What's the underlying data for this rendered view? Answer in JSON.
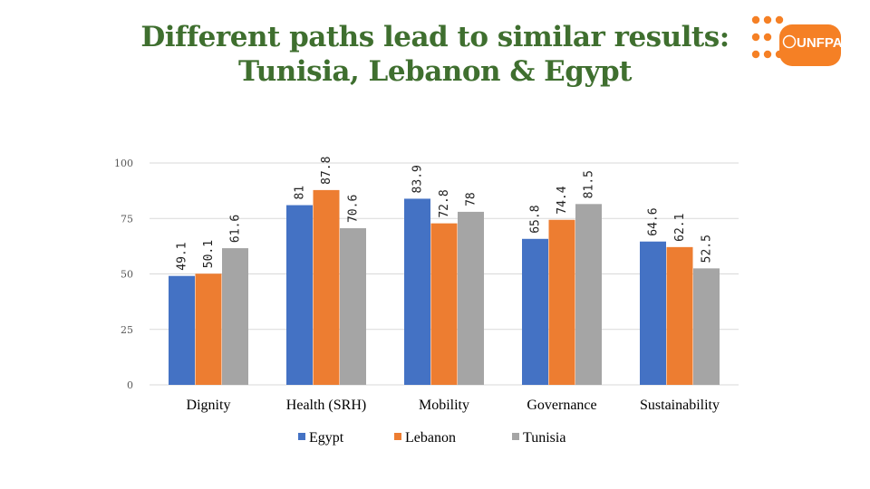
{
  "header": {
    "title_line1": "Different paths lead to similar results:",
    "title_line2": "Tunisia, Lebanon & Egypt"
  },
  "logo": {
    "text": "UNFPA",
    "color": "#f58025"
  },
  "colors": {
    "series": [
      "#4472c4",
      "#ed7d31",
      "#a5a5a5"
    ],
    "gridline": "#d9d9d9",
    "title": "#3f6f2f"
  },
  "chart_data": {
    "type": "bar",
    "categories": [
      "Dignity",
      "Health (SRH)",
      "Mobility",
      "Governance",
      "Sustainability"
    ],
    "series": [
      {
        "name": "Egypt",
        "values": [
          49.1,
          81,
          83.9,
          65.8,
          64.6
        ]
      },
      {
        "name": "Lebanon",
        "values": [
          50.1,
          87.8,
          72.8,
          74.4,
          62.1
        ]
      },
      {
        "name": "Tunisia",
        "values": [
          61.6,
          70.6,
          78,
          81.5,
          52.5
        ]
      }
    ],
    "y_ticks": [
      0,
      25,
      50,
      75,
      100
    ],
    "ylim": [
      0,
      100
    ],
    "grid": true,
    "legend_position": "bottom"
  }
}
